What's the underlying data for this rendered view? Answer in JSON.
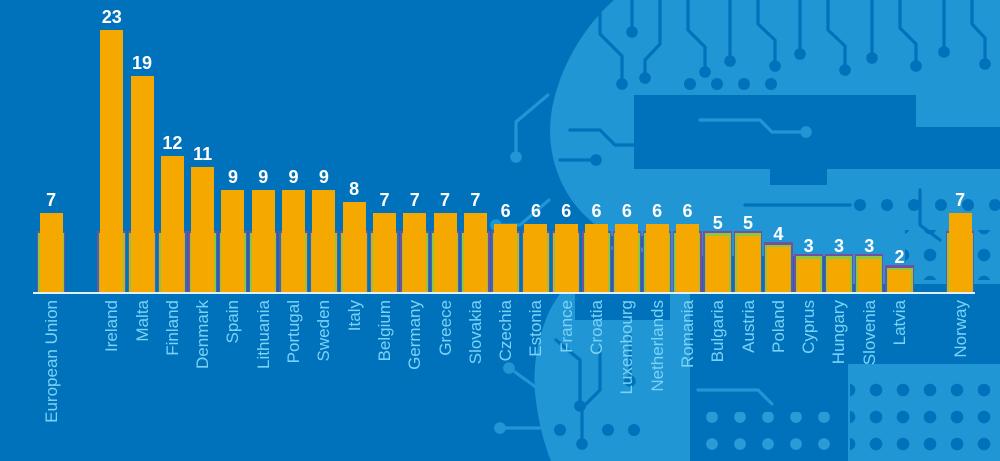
{
  "palette": {
    "background": "#0072BC",
    "circuit_light_blue": "#2196D5",
    "bar_orange": "#F5A800",
    "outline_green": "#8DC63F",
    "outline_purple": "#7A4E9E",
    "value_label": "#FFFFFF",
    "category_label": "#7AD3F6",
    "axis_line": "#E4F0F9"
  },
  "chart_data": {
    "type": "bar",
    "title": "",
    "xlabel": "",
    "ylabel": "",
    "ylim": [
      0,
      24
    ],
    "grid": false,
    "legend_position": "none",
    "background_decoration": "circuit-board-head-silhouette",
    "categories": [
      "European Union",
      "Ireland",
      "Malta",
      "Finland",
      "Denmark",
      "Spain",
      "Lithuania",
      "Portugal",
      "Sweden",
      "Italy",
      "Belgium",
      "Germany",
      "Greece",
      "Slovakia",
      "Czechia",
      "Estonia",
      "France",
      "Croatia",
      "Luxembourg",
      "Netherlands",
      "Romania",
      "Bulgaria",
      "Austria",
      "Poland",
      "Cyprus",
      "Hungary",
      "Slovenia",
      "Latvia",
      "Norway"
    ],
    "values": [
      7,
      23,
      19,
      12,
      11,
      9,
      9,
      9,
      9,
      8,
      7,
      7,
      7,
      7,
      6,
      6,
      6,
      6,
      6,
      6,
      6,
      5,
      5,
      4,
      3,
      3,
      3,
      2,
      7
    ],
    "gap_after": [
      "European Union",
      "Latvia"
    ],
    "bar_color": "#F5A800",
    "bar_outline_inner": "#8DC63F",
    "bar_outline_outer": "#7A4E9E",
    "value_label_color": "#FFFFFF",
    "category_label_color": "#7AD3F6"
  }
}
